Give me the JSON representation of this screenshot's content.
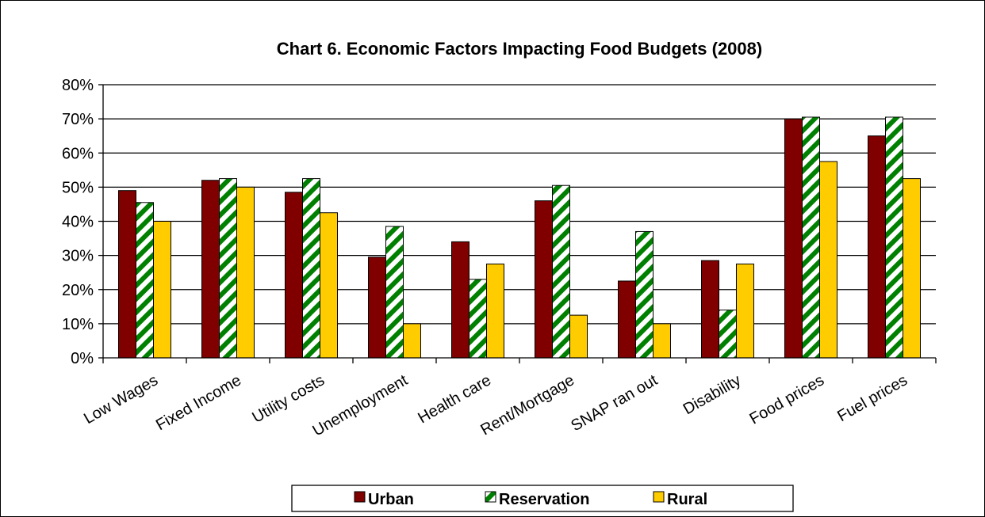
{
  "chart_data": {
    "type": "bar",
    "title": "Chart 6. Economic Factors Impacting Food Budgets (2008)",
    "xlabel": "",
    "ylabel": "",
    "ylim": [
      0,
      80
    ],
    "ytick_step": 10,
    "ytick_suffix": "%",
    "grid": true,
    "legend_position": "bottom",
    "categories": [
      "Low Wages",
      "Fixed Income",
      "Utility costs",
      "Unemployment",
      "Health care",
      "Rent/Mortgage",
      "SNAP ran out",
      "Disability",
      "Food prices",
      "Fuel prices"
    ],
    "series": [
      {
        "name": "Urban",
        "color": "#800000",
        "pattern": "solid",
        "values": [
          49,
          52,
          48.5,
          29.5,
          34,
          46,
          22.5,
          28.5,
          70,
          65
        ]
      },
      {
        "name": "Reservation",
        "color": "#008000",
        "pattern": "diagonal-stripe",
        "values": [
          45.5,
          52.5,
          52.5,
          38.5,
          23,
          50.5,
          37,
          14,
          70.5,
          70.5
        ]
      },
      {
        "name": "Rural",
        "color": "#ffcc00",
        "pattern": "solid",
        "values": [
          40,
          50,
          42.5,
          10,
          27.5,
          12.5,
          10,
          27.5,
          57.5,
          52.5
        ]
      }
    ]
  }
}
